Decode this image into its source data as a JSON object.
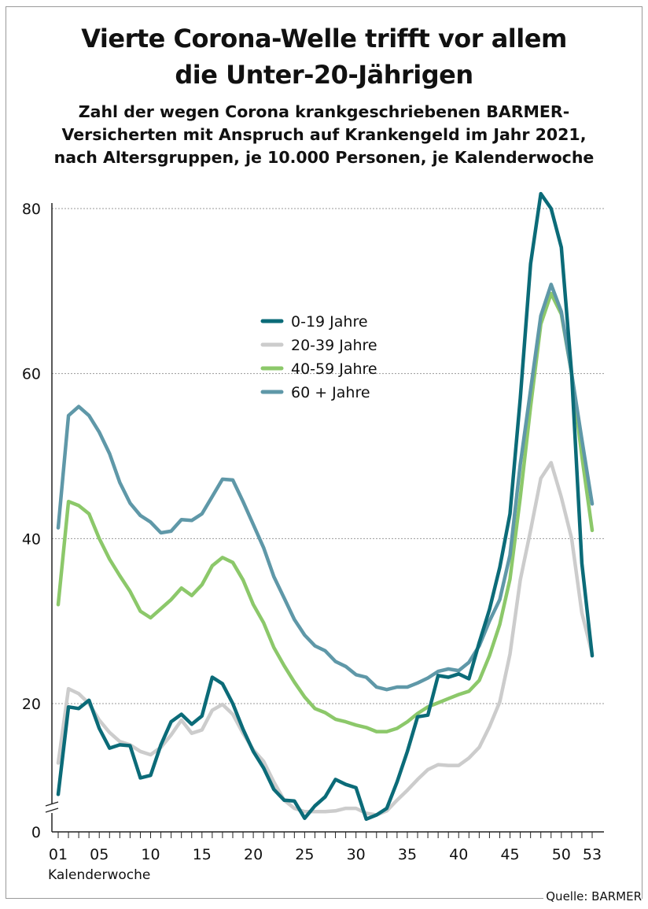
{
  "title": {
    "line1": "Vierte Corona-Welle trifft vor allem",
    "line2": "die Unter-20-Jährigen"
  },
  "subtitle": {
    "line1": "Zahl der wegen Corona krankgeschriebenen BARMER-",
    "line2": "Versicherten mit Anspruch auf Krankengeld im Jahr 2021,",
    "line3": "nach Altersgruppen, je 10.000 Personen, je Kalenderwoche"
  },
  "source": "Quelle: BARMER",
  "chart_data": {
    "type": "line",
    "title": "Vierte Corona-Welle trifft vor allem die Unter-20-Jährigen",
    "xlabel": "Kalenderwoche",
    "ylabel": "",
    "ylim": [
      0,
      80
    ],
    "axis_break": true,
    "grid": "horizontal dotted",
    "legend_position": "center",
    "x_ticks": [
      {
        "week": 1,
        "label": "01"
      },
      {
        "week": 5,
        "label": "05"
      },
      {
        "week": 10,
        "label": "10"
      },
      {
        "week": 15,
        "label": "15"
      },
      {
        "week": 20,
        "label": "20"
      },
      {
        "week": 25,
        "label": "25"
      },
      {
        "week": 30,
        "label": "30"
      },
      {
        "week": 35,
        "label": "35"
      },
      {
        "week": 40,
        "label": "40"
      },
      {
        "week": 45,
        "label": "45"
      },
      {
        "week": 50,
        "label": "50"
      },
      {
        "week": 53,
        "label": "53"
      }
    ],
    "y_ticks": [
      {
        "value": 0,
        "label": "0"
      },
      {
        "value": 20,
        "label": "20"
      },
      {
        "value": 40,
        "label": "40"
      },
      {
        "value": 60,
        "label": "60"
      },
      {
        "value": 80,
        "label": "80"
      }
    ],
    "x": [
      1,
      2,
      3,
      4,
      5,
      6,
      7,
      8,
      9,
      10,
      11,
      12,
      13,
      14,
      15,
      16,
      17,
      18,
      19,
      20,
      21,
      22,
      23,
      24,
      25,
      26,
      27,
      28,
      29,
      30,
      31,
      32,
      33,
      34,
      35,
      36,
      37,
      38,
      39,
      40,
      41,
      42,
      43,
      44,
      45,
      46,
      47,
      48,
      49,
      50,
      51,
      52,
      53
    ],
    "series": [
      {
        "name": "0-19 Jahre",
        "label": " 0-19 Jahre",
        "color": "#0b6b78",
        "values": [
          9.0,
          19.6,
          19.4,
          20.4,
          17.0,
          14.6,
          15.0,
          14.9,
          11.0,
          11.3,
          15.0,
          17.8,
          18.7,
          17.5,
          18.5,
          23.2,
          22.4,
          20.0,
          16.9,
          14.2,
          12.2,
          9.6,
          8.3,
          8.2,
          6.1,
          7.6,
          8.7,
          10.8,
          10.2,
          9.8,
          6.0,
          6.5,
          7.3,
          10.5,
          14.2,
          18.4,
          18.6,
          23.4,
          23.2,
          23.6,
          23.0,
          27.4,
          31.4,
          36.5,
          43.0,
          57.0,
          73.3,
          81.8,
          80.0,
          75.3,
          60.0,
          37.0,
          25.8
        ]
      },
      {
        "name": "20-39 Jahre",
        "label": "20-39 Jahre",
        "color": "#cccccc",
        "values": [
          12.8,
          21.8,
          21.2,
          20.0,
          18.0,
          16.5,
          15.4,
          15.0,
          14.2,
          13.8,
          14.7,
          16.2,
          18.0,
          16.4,
          16.8,
          19.2,
          19.9,
          18.7,
          16.4,
          14.4,
          13.0,
          10.5,
          8.3,
          7.3,
          6.9,
          6.9,
          6.9,
          7.0,
          7.3,
          7.3,
          6.7,
          6.5,
          7.0,
          8.3,
          9.5,
          10.8,
          12.0,
          12.6,
          12.5,
          12.5,
          13.4,
          14.7,
          17.2,
          20.2,
          26.0,
          35.0,
          41.0,
          47.3,
          49.2,
          45.0,
          40.0,
          31.0,
          26.0
        ]
      },
      {
        "name": "40-59 Jahre",
        "label": "40-59 Jahre",
        "color": "#8cc86a",
        "values": [
          32.0,
          44.5,
          44.0,
          43.0,
          40.0,
          37.5,
          35.5,
          33.6,
          31.2,
          30.4,
          31.5,
          32.6,
          34.0,
          33.1,
          34.4,
          36.7,
          37.7,
          37.1,
          35.0,
          32.0,
          29.8,
          26.8,
          24.6,
          22.6,
          20.8,
          19.4,
          18.9,
          18.1,
          17.8,
          17.4,
          17.1,
          16.6,
          16.6,
          17.0,
          17.8,
          18.8,
          19.6,
          20.1,
          20.6,
          21.1,
          21.5,
          22.8,
          25.8,
          29.6,
          35.1,
          45.0,
          56.0,
          66.0,
          69.7,
          67.2,
          60.0,
          50.0,
          41.0
        ]
      },
      {
        "name": "60 + Jahre",
        "label": "60 + Jahre",
        "color": "#5f98a8",
        "values": [
          41.3,
          54.9,
          56.0,
          54.9,
          52.9,
          50.3,
          46.8,
          44.3,
          42.8,
          42.0,
          40.7,
          40.9,
          42.3,
          42.2,
          43.0,
          45.1,
          47.2,
          47.1,
          44.5,
          41.7,
          38.9,
          35.4,
          32.8,
          30.2,
          28.3,
          27.0,
          26.4,
          25.1,
          24.5,
          23.5,
          23.2,
          22.0,
          21.7,
          22.0,
          22.0,
          22.5,
          23.1,
          23.9,
          24.2,
          24.0,
          25.0,
          27.0,
          30.0,
          32.6,
          38.0,
          49.0,
          58.0,
          67.0,
          70.8,
          67.5,
          60.0,
          52.0,
          44.2
        ]
      }
    ]
  }
}
